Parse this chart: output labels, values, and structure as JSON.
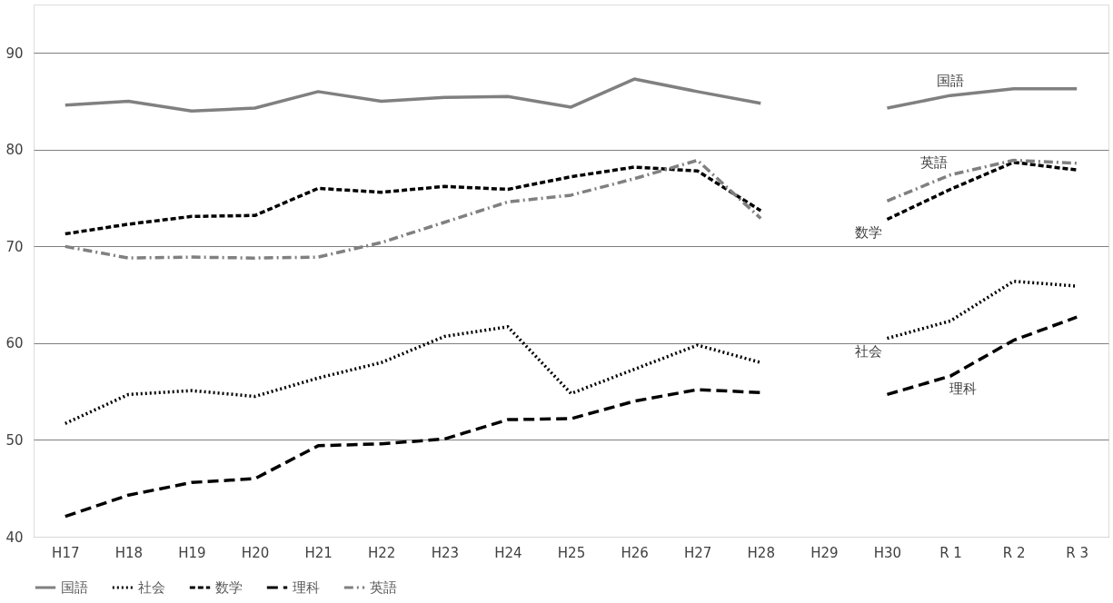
{
  "chart_data": {
    "type": "line",
    "categories": [
      "H17",
      "H18",
      "H19",
      "H20",
      "H21",
      "H22",
      "H23",
      "H24",
      "H25",
      "H26",
      "H27",
      "H28",
      "H29",
      "H30",
      "R 1",
      "R 2",
      "R 3"
    ],
    "series": [
      {
        "name": "国語",
        "color": "#808080",
        "line_style": "solid",
        "values": [
          84.6,
          85.0,
          84.0,
          84.3,
          86.0,
          85.0,
          85.4,
          85.5,
          84.4,
          87.3,
          86.0,
          84.8,
          null,
          84.3,
          85.6,
          86.3,
          86.3
        ]
      },
      {
        "name": "社会",
        "color": "#000000",
        "line_style": "dotted",
        "values": [
          51.7,
          54.7,
          55.1,
          54.5,
          56.4,
          58.0,
          60.7,
          61.7,
          54.8,
          57.3,
          59.8,
          58.0,
          null,
          60.5,
          62.3,
          66.4,
          65.9
        ]
      },
      {
        "name": "数学",
        "color": "#000000",
        "line_style": "dashed",
        "values": [
          71.3,
          72.3,
          73.1,
          73.2,
          76.0,
          75.6,
          76.2,
          75.9,
          77.2,
          78.2,
          77.8,
          73.7,
          null,
          72.8,
          75.9,
          78.7,
          77.9
        ]
      },
      {
        "name": "理科",
        "color": "#000000",
        "line_style": "longdash",
        "values": [
          42.1,
          44.3,
          45.6,
          46.0,
          49.4,
          49.6,
          50.1,
          52.1,
          52.2,
          54.0,
          55.2,
          54.9,
          null,
          54.7,
          56.6,
          60.3,
          62.7
        ]
      },
      {
        "name": "英語",
        "color": "#808080",
        "line_style": "dashdot",
        "values": [
          70.0,
          68.8,
          68.9,
          68.8,
          68.9,
          70.4,
          72.5,
          74.6,
          75.3,
          77.0,
          78.9,
          72.9,
          null,
          74.7,
          77.4,
          78.9,
          78.6
        ]
      }
    ],
    "annotations": [
      {
        "text": "国語",
        "x": "R 1",
        "y": 85.6
      },
      {
        "text": "英語",
        "x": "R 1",
        "y": 77.4
      },
      {
        "text": "数学",
        "x": "H30",
        "y": 72.8
      },
      {
        "text": "社会",
        "x": "H30",
        "y": 60.5
      },
      {
        "text": "理科",
        "x": "R 1",
        "y": 56.6
      }
    ],
    "ylim": [
      40,
      95
    ],
    "yticks": [
      40,
      50,
      60,
      70,
      80,
      90
    ],
    "grid": "y",
    "legend": "bottom",
    "marker": "none"
  }
}
